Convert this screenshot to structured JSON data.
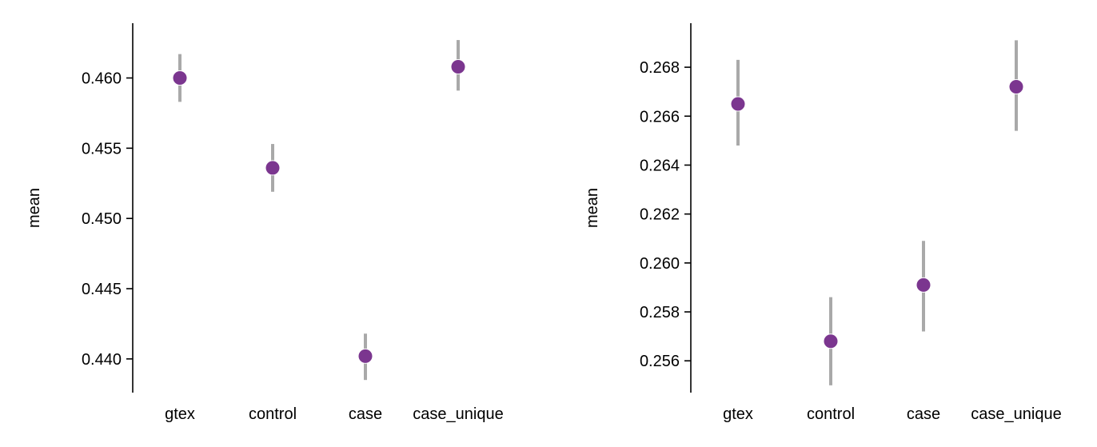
{
  "colors": {
    "point": "#7b368f",
    "errorbar": "#a9a9a9",
    "axis": "#000000"
  },
  "chart_data": [
    {
      "type": "scatter",
      "title": "",
      "xlabel": "",
      "ylabel": "mean",
      "categories": [
        "gtex",
        "control",
        "case",
        "case_unique"
      ],
      "values": [
        0.46,
        0.4536,
        0.4402,
        0.4608
      ],
      "error_low": [
        0.4583,
        0.4519,
        0.4385,
        0.4591
      ],
      "error_high": [
        0.4617,
        0.4553,
        0.4418,
        0.4627
      ],
      "ylim": [
        0.4376,
        0.4639
      ],
      "yticks": [
        0.44,
        0.445,
        0.45,
        0.455,
        0.46
      ],
      "ytick_labels": [
        "0.440",
        "0.445",
        "0.450",
        "0.455",
        "0.460"
      ],
      "grid": false,
      "legend": "none"
    },
    {
      "type": "scatter",
      "title": "",
      "xlabel": "",
      "ylabel": "mean",
      "categories": [
        "gtex",
        "control",
        "case",
        "case_unique"
      ],
      "values": [
        0.2665,
        0.2568,
        0.2591,
        0.2672
      ],
      "error_low": [
        0.2648,
        0.255,
        0.2572,
        0.2654
      ],
      "error_high": [
        0.2683,
        0.2586,
        0.2609,
        0.2691
      ],
      "ylim": [
        0.2547,
        0.2698
      ],
      "yticks": [
        0.256,
        0.258,
        0.26,
        0.262,
        0.264,
        0.266,
        0.268
      ],
      "ytick_labels": [
        "0.256",
        "0.258",
        "0.260",
        "0.262",
        "0.264",
        "0.266",
        "0.268"
      ],
      "grid": false,
      "legend": "none"
    }
  ]
}
